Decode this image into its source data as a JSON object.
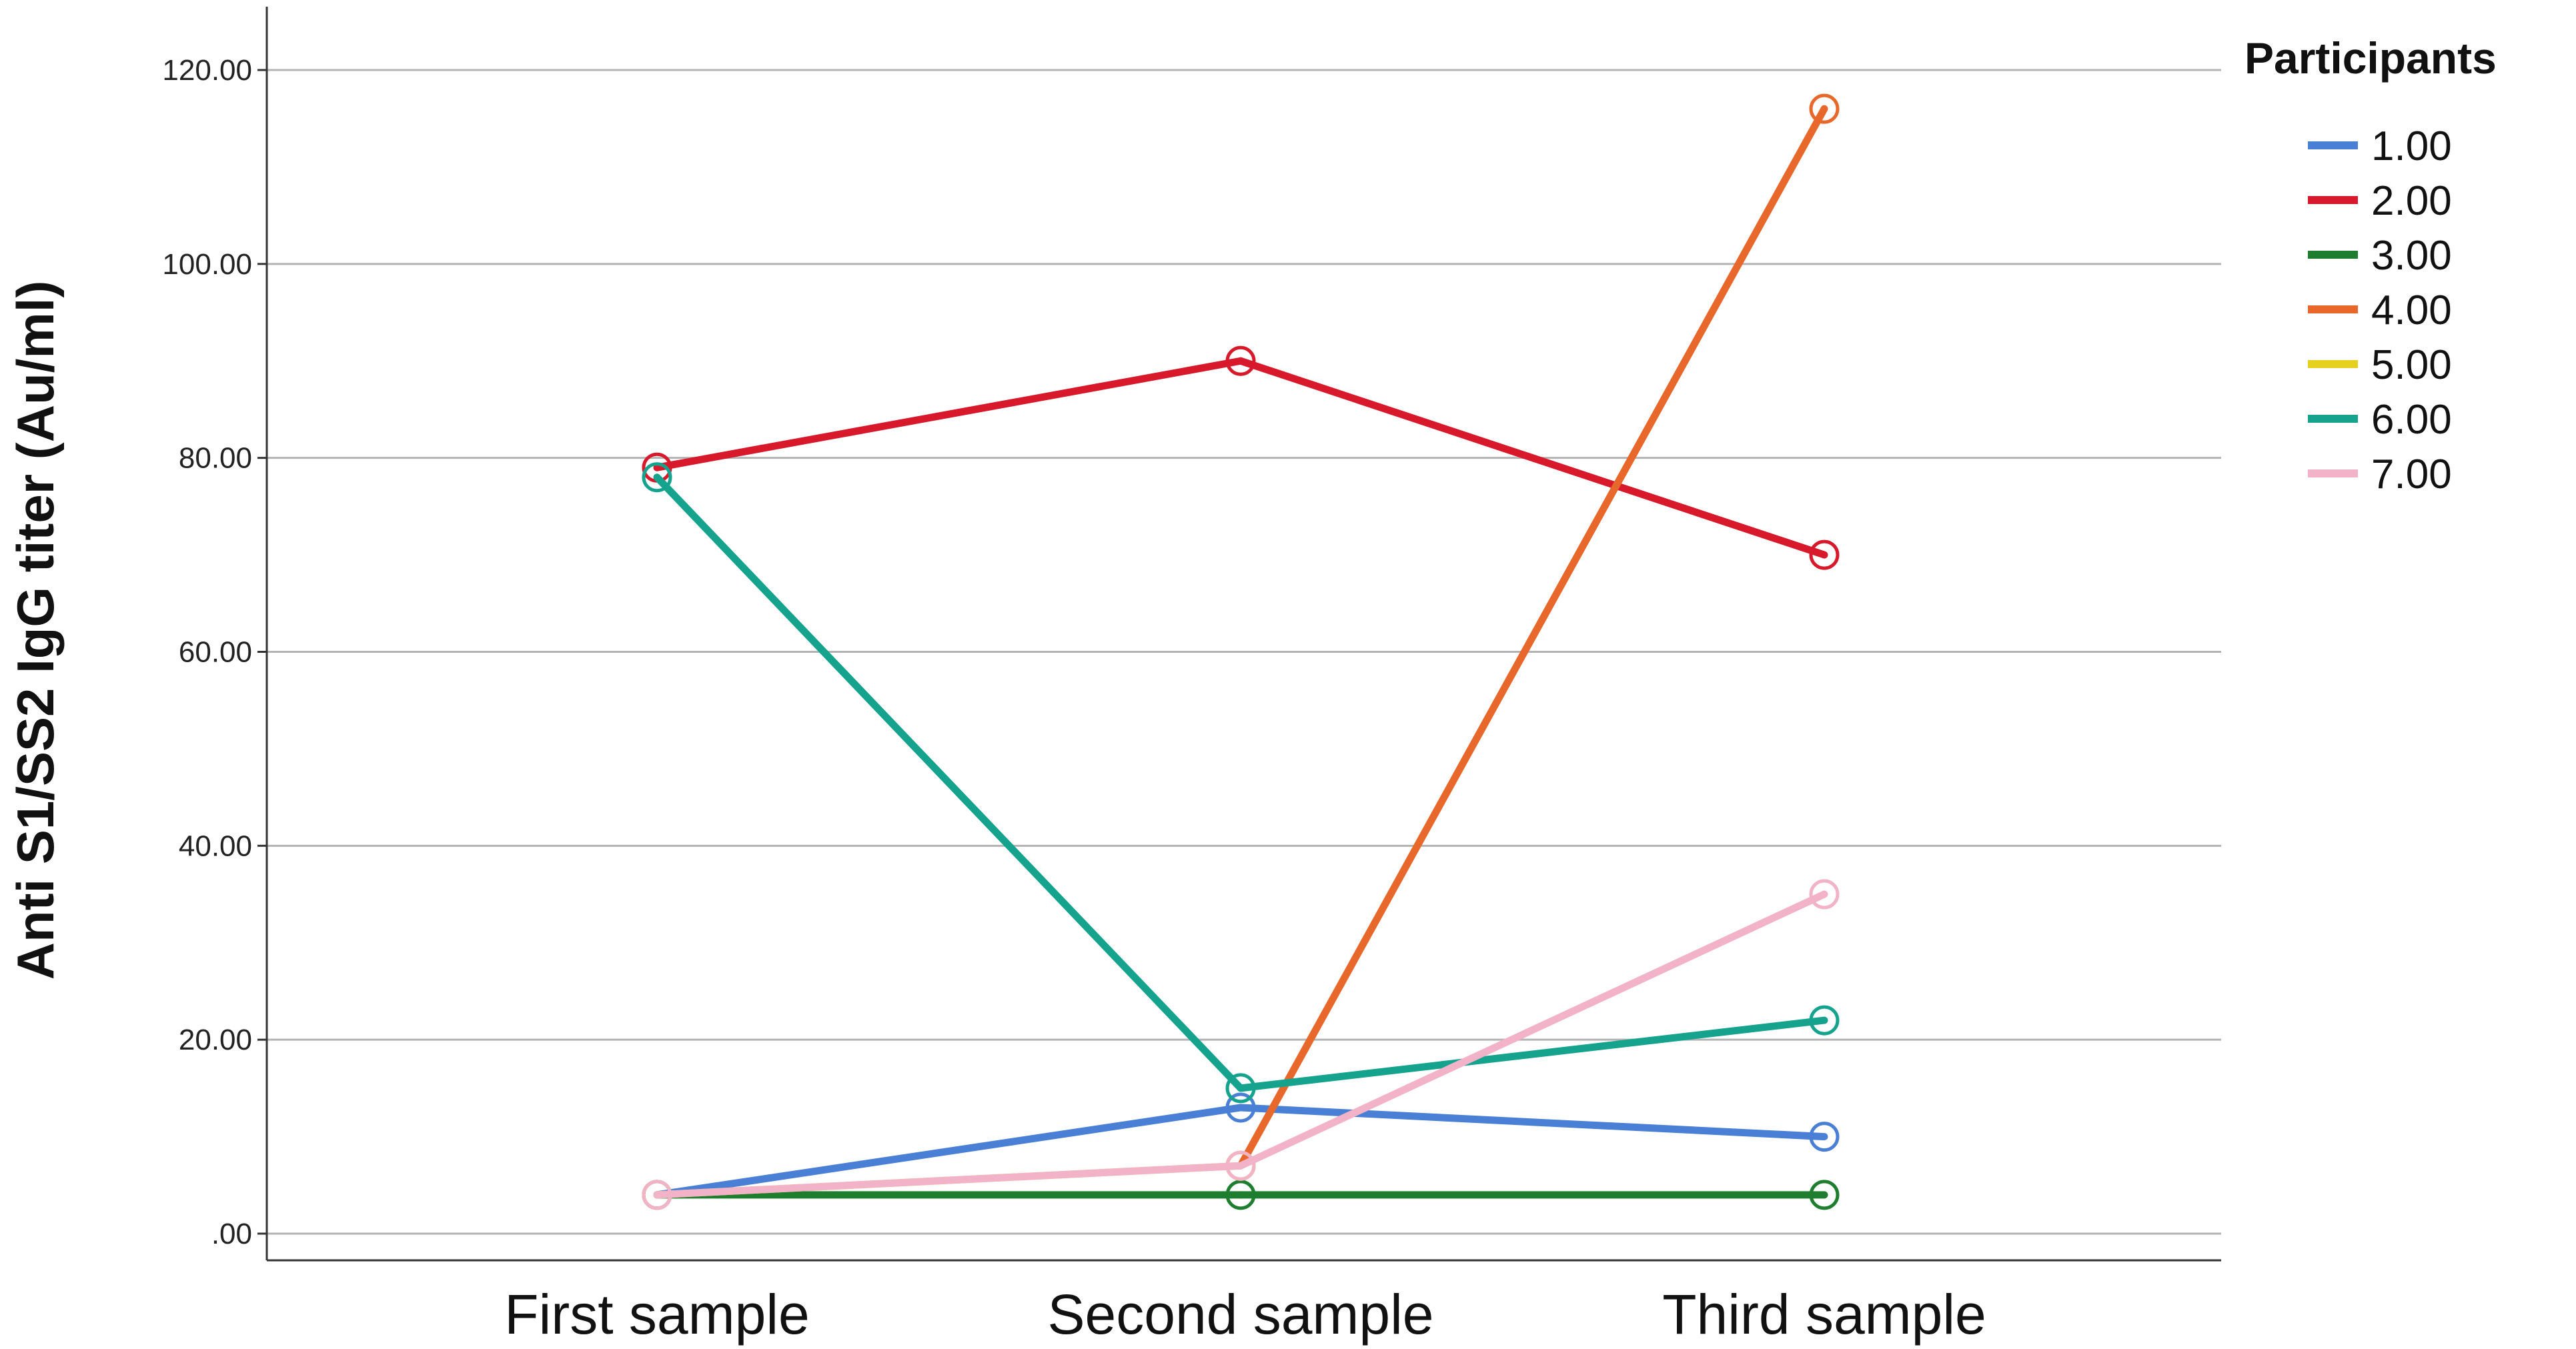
{
  "chart_data": {
    "type": "line",
    "title": "",
    "xlabel": "",
    "ylabel": "Anti S1/SS2 IgG titer (Au/ml)",
    "categories": [
      "First sample",
      "Second sample",
      "Third sample"
    ],
    "ylim": [
      0,
      120
    ],
    "yticks": [
      {
        "value": 0,
        "label": ".00"
      },
      {
        "value": 20,
        "label": "20.00"
      },
      {
        "value": 40,
        "label": "40.00"
      },
      {
        "value": 60,
        "label": "60.00"
      },
      {
        "value": 80,
        "label": "80.00"
      },
      {
        "value": 100,
        "label": "100.00"
      },
      {
        "value": 120,
        "label": "120.00"
      }
    ],
    "grid": true,
    "legend": {
      "title": "Participants",
      "placement": "top-right"
    },
    "series": [
      {
        "name": "1.00",
        "color": "#4a7fd6",
        "values": [
          4,
          13,
          10
        ]
      },
      {
        "name": "2.00",
        "color": "#d8192b",
        "values": [
          79,
          90,
          70
        ]
      },
      {
        "name": "3.00",
        "color": "#1e7d2e",
        "values": [
          4,
          4,
          4
        ]
      },
      {
        "name": "4.00",
        "color": "#e8672b",
        "values": [
          null,
          7,
          116
        ]
      },
      {
        "name": "5.00",
        "color": "#e6d21e",
        "values": [
          4,
          7,
          null
        ]
      },
      {
        "name": "6.00",
        "color": "#15a38e",
        "values": [
          78,
          15,
          22
        ]
      },
      {
        "name": "7.00",
        "color": "#f2b2c8",
        "values": [
          4,
          7,
          35
        ]
      }
    ]
  }
}
